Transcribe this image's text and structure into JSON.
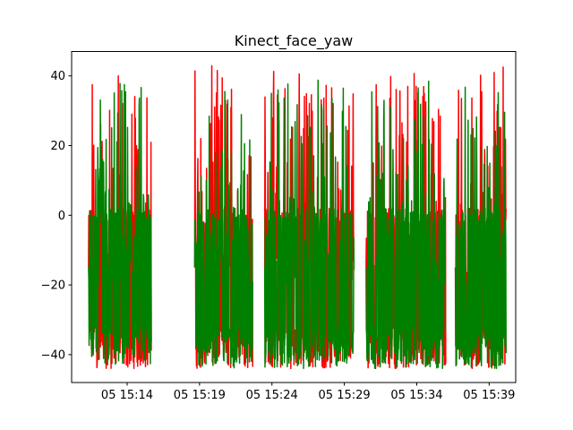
{
  "chart_data": {
    "type": "line",
    "title": "Kinect_face_yaw",
    "xlabel": "",
    "ylabel": "",
    "ylim": [
      -48,
      47
    ],
    "xlim": [
      "05 15:10:10",
      "05 15:40:50"
    ],
    "grid": false,
    "legend": "none",
    "x_tick_labels": [
      "05 15:14",
      "05 15:19",
      "05 15:24",
      "05 15:29",
      "05 15:34",
      "05 15:39"
    ],
    "y_ticks": [
      -40,
      -20,
      0,
      20,
      40
    ],
    "segments": [
      {
        "start": "05 15:11:20",
        "end": "05 15:15:40"
      },
      {
        "start": "05 15:18:40",
        "end": "05 15:22:40"
      },
      {
        "start": "05 15:23:30",
        "end": "05 15:29:40"
      },
      {
        "start": "05 15:30:30",
        "end": "05 15:36:00"
      },
      {
        "start": "05 15:36:40",
        "end": "05 15:40:10"
      }
    ],
    "series": [
      {
        "color": "#ff0000",
        "min": -44,
        "max": 43
      },
      {
        "color": "#008000",
        "min": -44,
        "max": 39
      }
    ]
  }
}
